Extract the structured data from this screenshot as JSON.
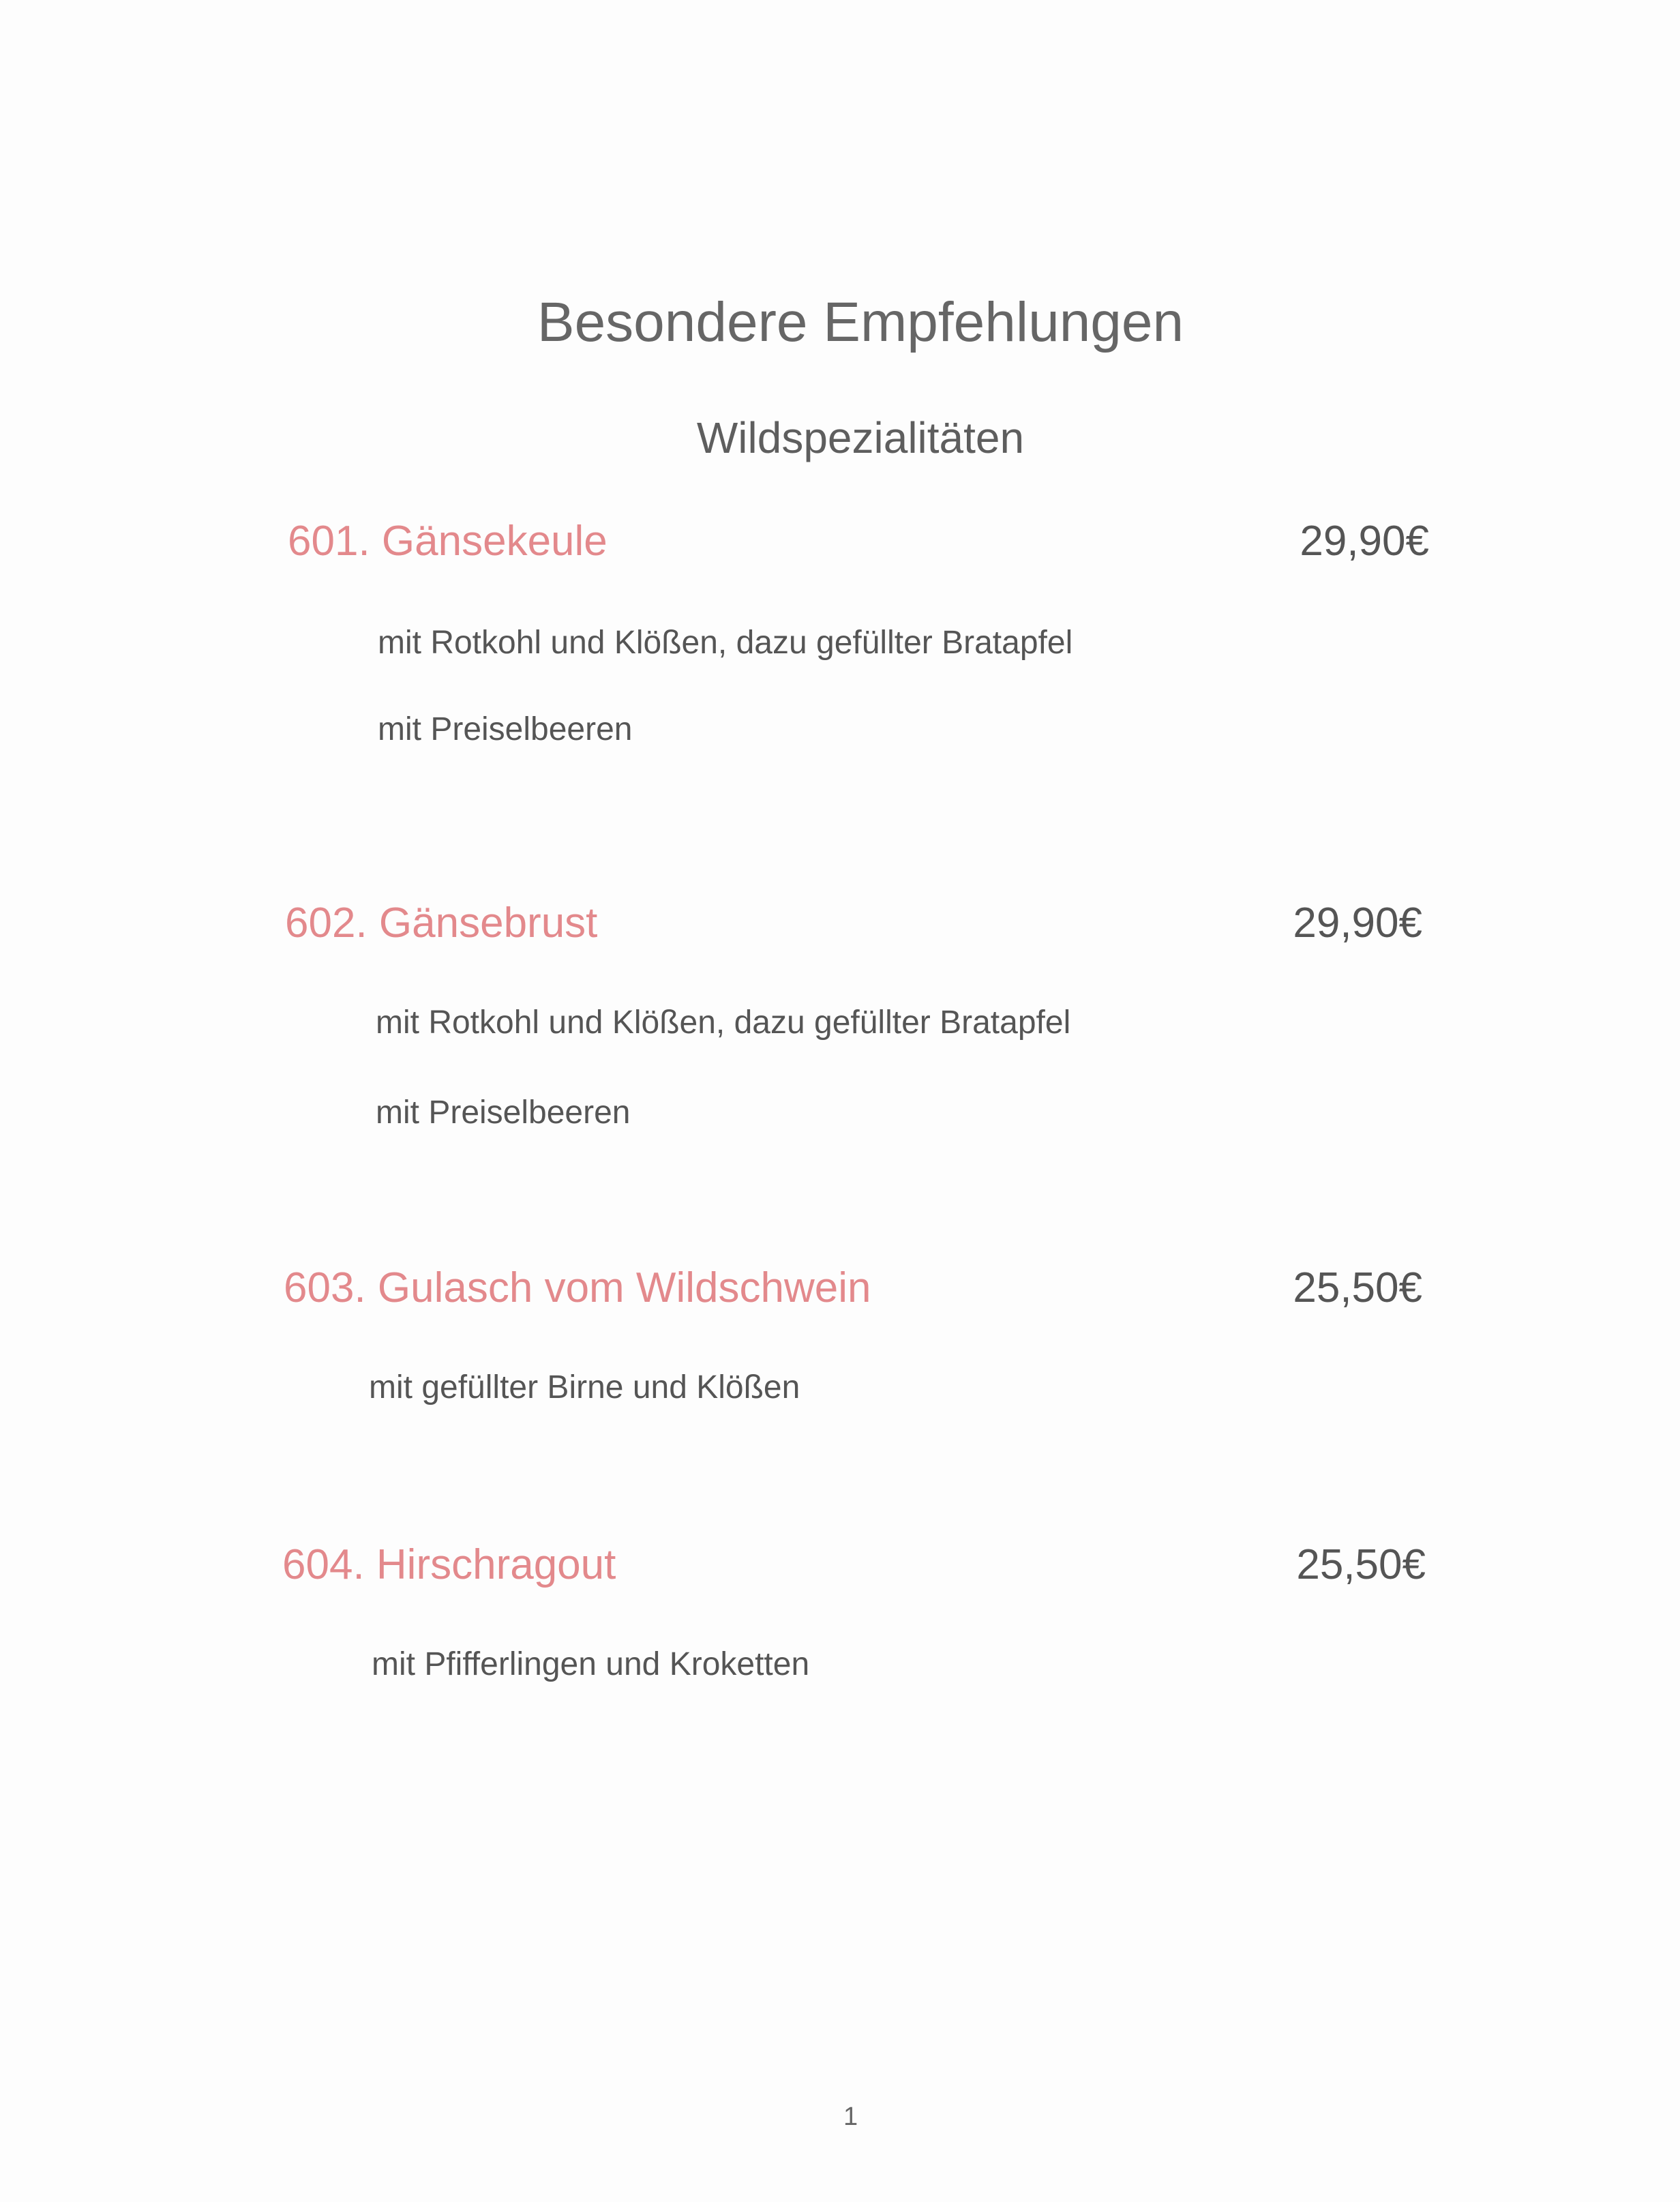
{
  "header": {
    "title": "Besondere Empfehlungen",
    "subtitle": "Wildspezialitäten"
  },
  "colors": {
    "item_name": "#e3898c",
    "text": "#555555"
  },
  "items": [
    {
      "name": "601. Gänsekeule",
      "price": "29,90€",
      "description": [
        "mit Rotkohl und Klößen, dazu gefüllter Bratapfel",
        "mit Preiselbeeren"
      ]
    },
    {
      "name": "602. Gänsebrust",
      "price": "29,90€",
      "description": [
        "mit Rotkohl und Klößen, dazu gefüllter Bratapfel",
        "mit Preiselbeeren"
      ]
    },
    {
      "name": "603. Gulasch vom Wildschwein",
      "price": "25,50€",
      "description": [
        "mit gefüllter Birne und Klößen"
      ]
    },
    {
      "name": "604. Hirschragout",
      "price": "25,50€",
      "description": [
        "mit Pfifferlingen und Kroketten"
      ]
    }
  ],
  "footer": {
    "page_number": "1"
  }
}
